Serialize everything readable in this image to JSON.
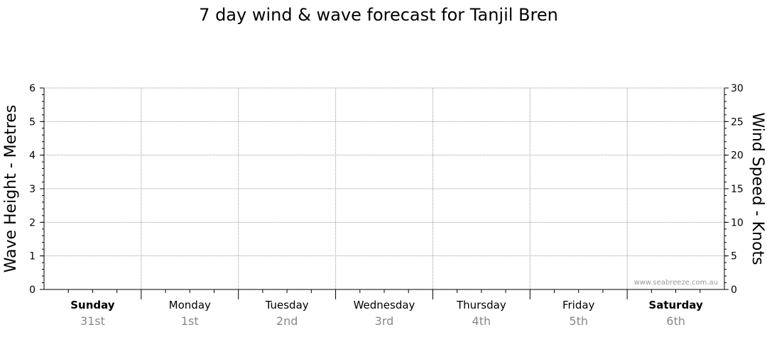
{
  "chart_data": {
    "type": "line",
    "title": "7 day wind & wave forecast for Tanjil Bren",
    "ylabel_left": "Wave Height - Metres",
    "ylabel_right": "Wind Speed - Knots",
    "ylim_left": [
      0,
      6
    ],
    "yticks_left": [
      "0",
      "1",
      "2",
      "3",
      "4",
      "5",
      "6"
    ],
    "ylim_right": [
      0,
      30
    ],
    "yticks_right": [
      "0",
      "5",
      "10",
      "15",
      "20",
      "25",
      "30"
    ],
    "grid": true,
    "days": [
      {
        "name": "Sunday",
        "date": "31st",
        "bold": true
      },
      {
        "name": "Monday",
        "date": "1st",
        "bold": false
      },
      {
        "name": "Tuesday",
        "date": "2nd",
        "bold": false
      },
      {
        "name": "Wednesday",
        "date": "3rd",
        "bold": false
      },
      {
        "name": "Thursday",
        "date": "4th",
        "bold": false
      },
      {
        "name": "Friday",
        "date": "5th",
        "bold": false
      },
      {
        "name": "Saturday",
        "date": "6th",
        "bold": true
      }
    ],
    "series": []
  },
  "credit": "www.seabreeze.com.au"
}
